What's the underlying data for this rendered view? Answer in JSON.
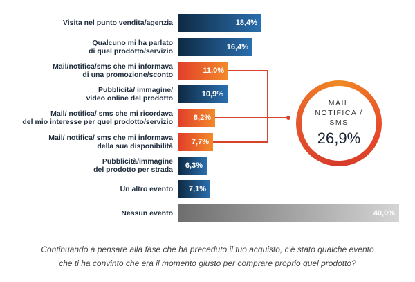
{
  "chart_data": {
    "type": "bar",
    "orientation": "horizontal",
    "categories": [
      "Visita nel punto vendita/agenzia",
      "Qualcuno mi ha parlato\ndi quel prodotto/servizio",
      "Mail/notifica/sms che mi informava\ndi una promozione/sconto",
      "Pubblicità/ immagine/\nvideo online del prodotto",
      "Mail/ notifica/ sms che mi ricordava\ndel mio interesse per quel prodotto/servizio",
      "Mail/ notifica/ sms che mi informava\ndella sua disponibilità",
      "Pubblicità/immagine\ndel prodotto per strada",
      "Un altro evento",
      "Nessun evento"
    ],
    "values": [
      18.4,
      16.4,
      11.0,
      10.9,
      8.2,
      7.7,
      6.3,
      7.1,
      40.0
    ],
    "value_labels": [
      "18,4%",
      "16,4%",
      "11,0%",
      "10,9%",
      "8,2%",
      "7,7%",
      "6,3%",
      "7,1%",
      "40,0%"
    ],
    "groups": [
      "other",
      "other",
      "mail",
      "other",
      "mail",
      "mail",
      "other",
      "other",
      "none"
    ],
    "colors": {
      "other": [
        "#0f2a44",
        "#2a6fae"
      ],
      "mail": [
        "#e23f2a",
        "#f28a2a"
      ],
      "none": [
        "#6e6e6e",
        "#d5d5d5"
      ]
    },
    "summary": {
      "title": "MAIL\nNOTIFICA /\nSMS",
      "value": "26,9%"
    },
    "caption": "Continuando a pensare alla fase che ha preceduto il tuo acquisto, c'è stato qualche evento\nche ti ha convinto che era il momento giusto per comprare proprio quel prodotto?",
    "unit": "%"
  }
}
